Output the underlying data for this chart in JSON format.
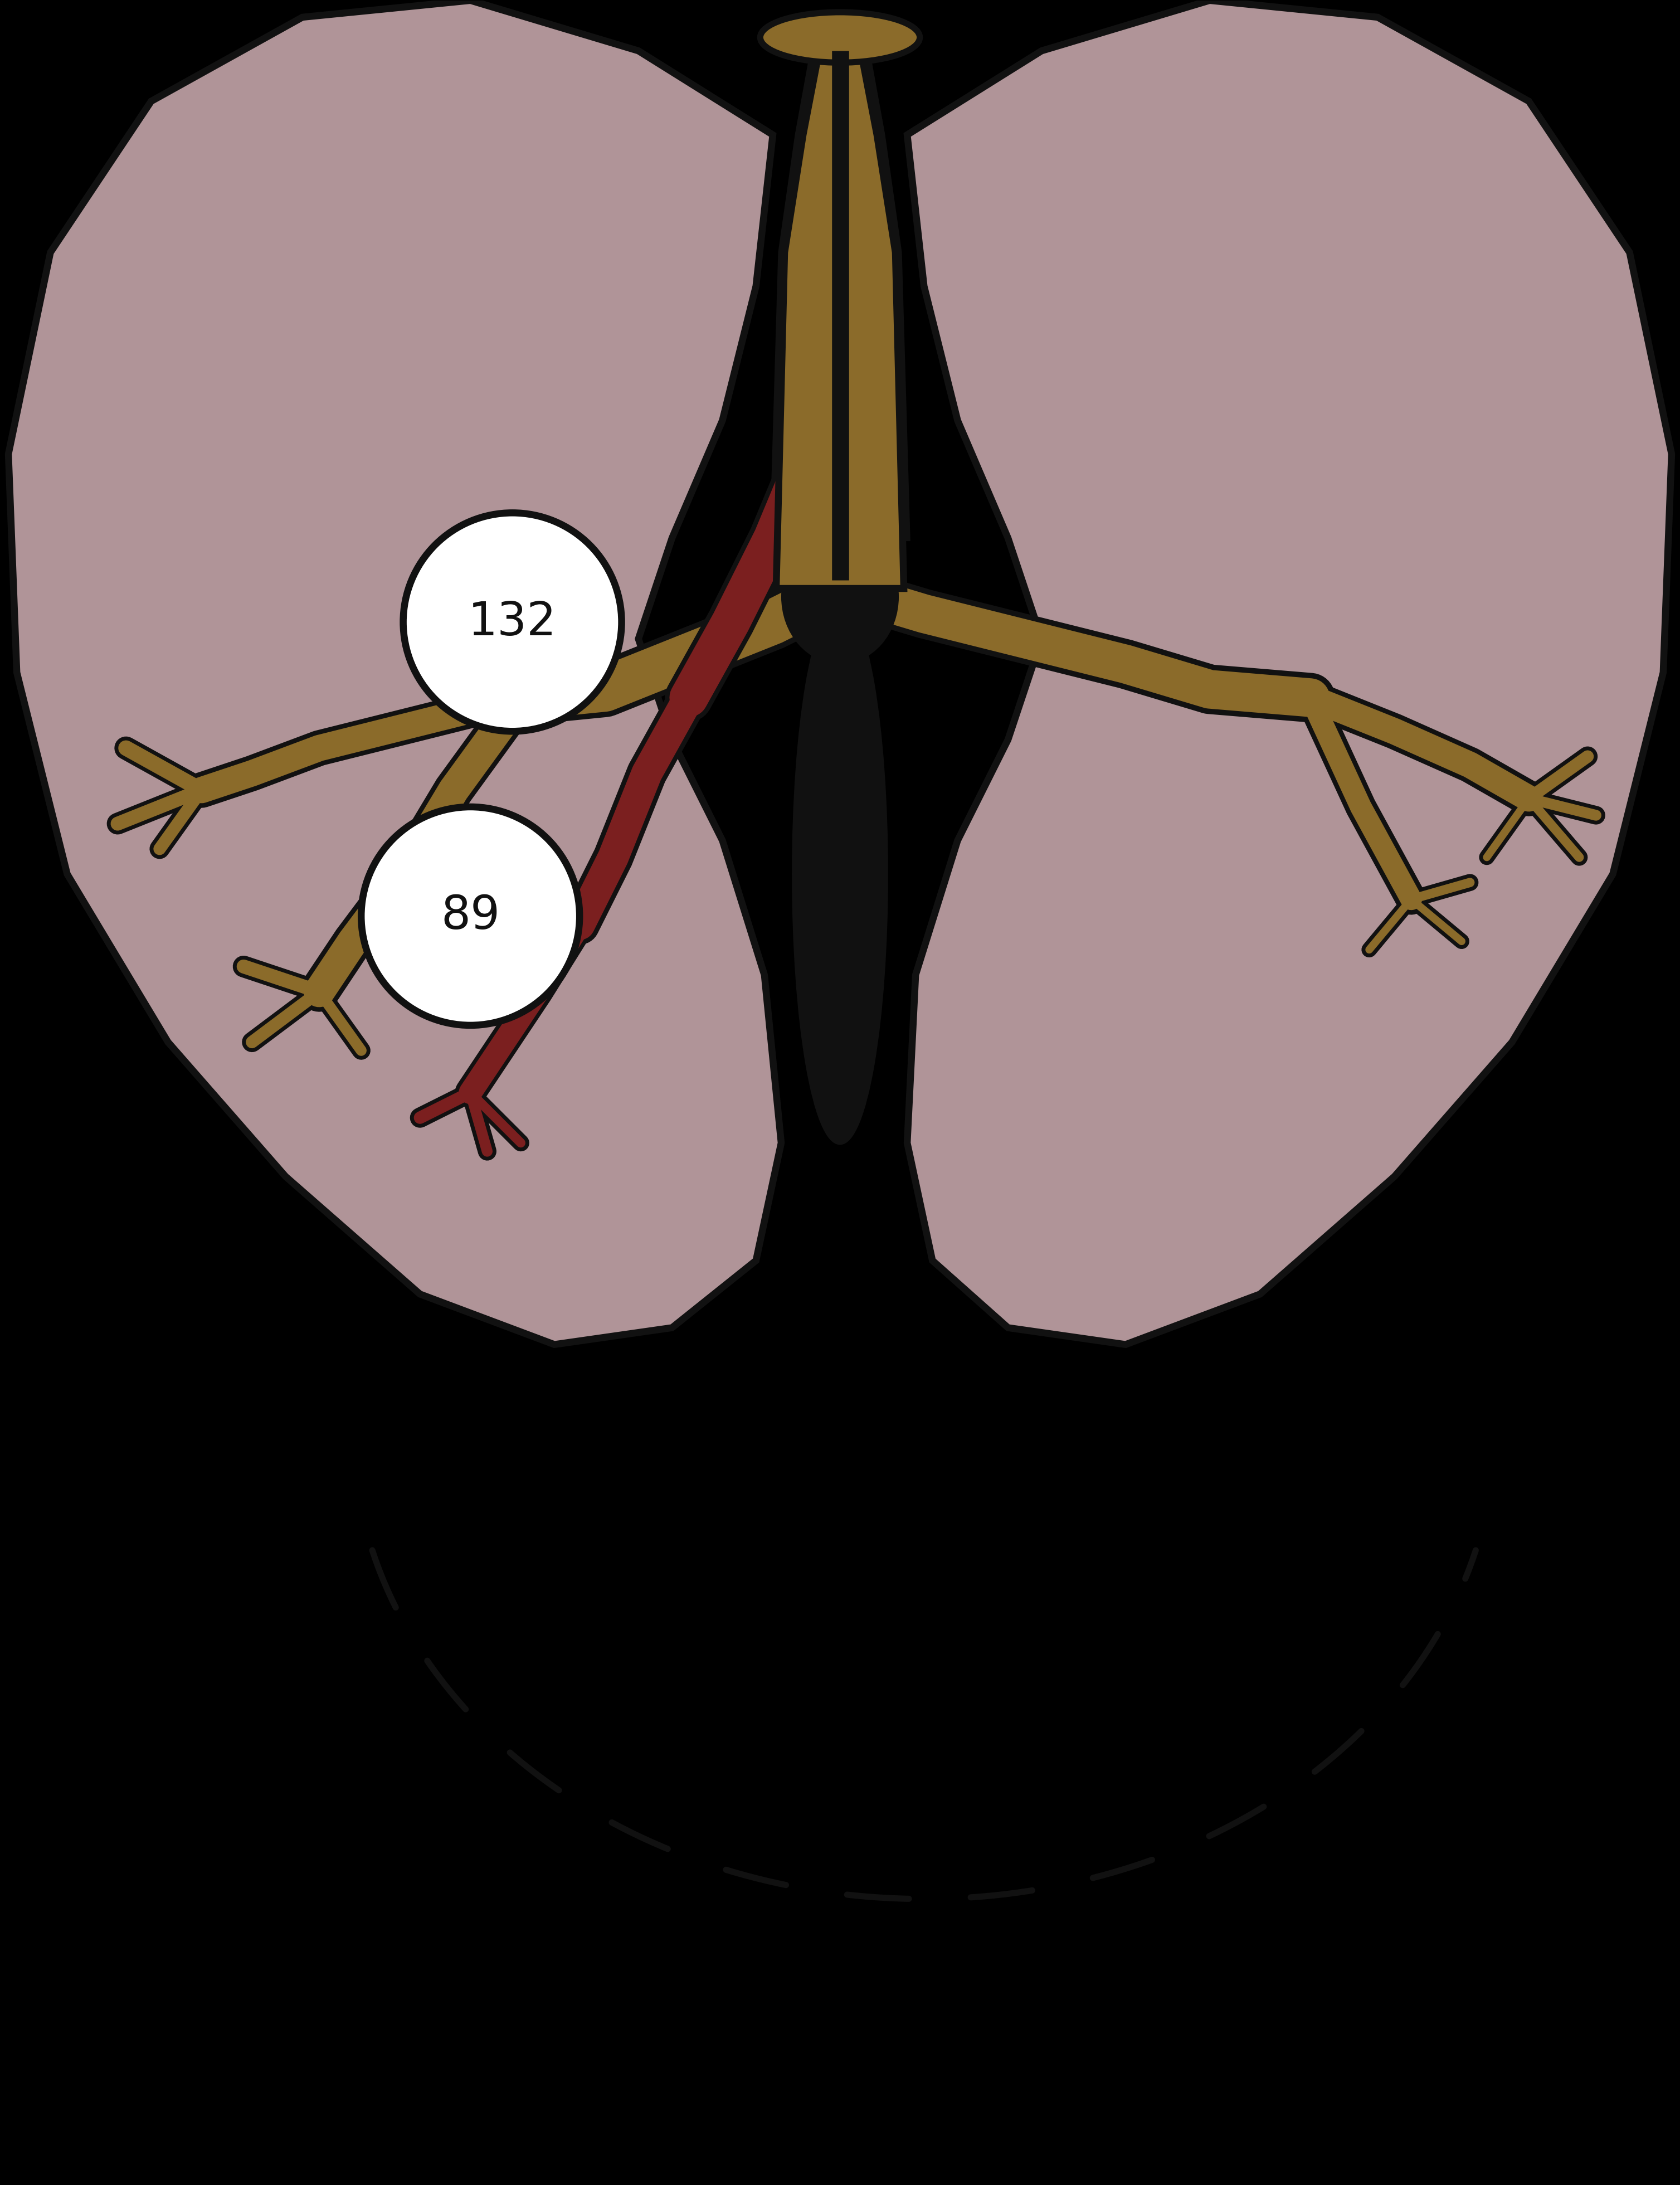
{
  "bg": "#000000",
  "lung_fill": "#b09498",
  "lung_edge": "#111111",
  "airway_fill": "#8B6B2A",
  "airway_edge": "#111111",
  "vessel_fill": "#7B1F1F",
  "vessel_edge": "#111111",
  "lumen_fill": "#111111",
  "circle_fill": "#ffffff",
  "circle_edge": "#111111",
  "dashed_color": "#111111",
  "label_132": "132",
  "label_89": "89",
  "label_fontsize": 60
}
